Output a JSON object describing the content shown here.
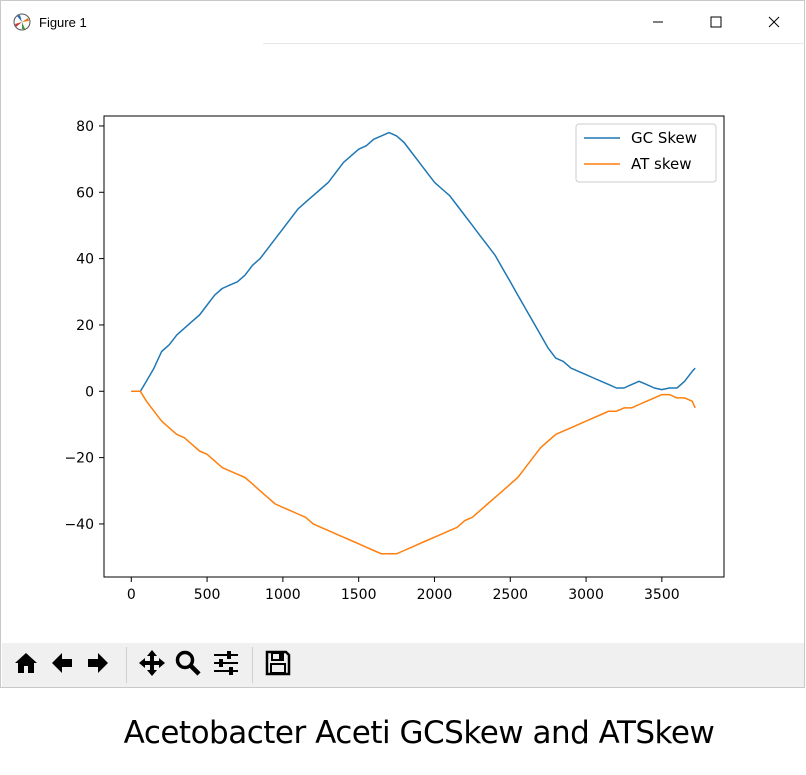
{
  "window": {
    "title": "Figure 1"
  },
  "window_controls": {
    "minimize_icon": "minimize-icon",
    "maximize_icon": "maximize-icon",
    "close_icon": "close-icon"
  },
  "toolbar": {
    "items": [
      "home-icon",
      "back-arrow-icon",
      "forward-arrow-icon",
      "pan-icon",
      "zoom-icon",
      "configure-subplots-icon",
      "save-icon"
    ]
  },
  "caption": "Acetobacter Aceti GCSkew and ATSkew",
  "colors": {
    "gc": "#1f77b4",
    "at": "#ff7f0e"
  },
  "chart_data": {
    "type": "line",
    "title": "",
    "xlabel": "",
    "ylabel": "",
    "xlim": [
      -180,
      3910
    ],
    "ylim": [
      -56,
      83
    ],
    "xticks": [
      0,
      500,
      1000,
      1500,
      2000,
      2500,
      3000,
      3500
    ],
    "yticks": [
      -40,
      -20,
      0,
      20,
      40,
      60,
      80
    ],
    "grid": false,
    "legend_position": "upper right",
    "series": [
      {
        "name": "GC Skew",
        "color": "#1f77b4",
        "x": [
          0,
          60,
          100,
          150,
          200,
          250,
          300,
          350,
          400,
          450,
          500,
          550,
          600,
          650,
          700,
          750,
          800,
          850,
          900,
          950,
          1000,
          1050,
          1100,
          1150,
          1200,
          1250,
          1300,
          1350,
          1400,
          1450,
          1500,
          1550,
          1600,
          1650,
          1700,
          1750,
          1800,
          1850,
          1900,
          1950,
          2000,
          2050,
          2100,
          2150,
          2200,
          2250,
          2300,
          2350,
          2400,
          2450,
          2500,
          2550,
          2600,
          2650,
          2700,
          2750,
          2800,
          2850,
          2900,
          2950,
          3000,
          3050,
          3100,
          3150,
          3200,
          3250,
          3300,
          3350,
          3400,
          3450,
          3500,
          3550,
          3600,
          3650,
          3700,
          3720
        ],
        "y": [
          0,
          0,
          3,
          7,
          12,
          14,
          17,
          19,
          21,
          23,
          26,
          29,
          31,
          32,
          33,
          35,
          38,
          40,
          43,
          46,
          49,
          52,
          55,
          57,
          59,
          61,
          63,
          66,
          69,
          71,
          73,
          74,
          76,
          77,
          78,
          77,
          75,
          72,
          69,
          66,
          63,
          61,
          59,
          56,
          53,
          50,
          47,
          44,
          41,
          37,
          33,
          29,
          25,
          21,
          17,
          13,
          10,
          9,
          7,
          6,
          5,
          4,
          3,
          2,
          1,
          1,
          2,
          3,
          2,
          1,
          0.5,
          1,
          1,
          3,
          6,
          7
        ]
      },
      {
        "name": "AT skew",
        "color": "#ff7f0e",
        "x": [
          0,
          60,
          100,
          150,
          200,
          250,
          300,
          350,
          400,
          450,
          500,
          550,
          600,
          650,
          700,
          750,
          800,
          850,
          900,
          950,
          1000,
          1050,
          1100,
          1150,
          1200,
          1250,
          1300,
          1350,
          1400,
          1450,
          1500,
          1550,
          1600,
          1650,
          1700,
          1750,
          1800,
          1850,
          1900,
          1950,
          2000,
          2050,
          2100,
          2150,
          2200,
          2250,
          2300,
          2350,
          2400,
          2450,
          2500,
          2550,
          2600,
          2650,
          2700,
          2750,
          2800,
          2850,
          2900,
          2950,
          3000,
          3050,
          3100,
          3150,
          3200,
          3250,
          3300,
          3350,
          3400,
          3450,
          3500,
          3550,
          3600,
          3650,
          3700,
          3720
        ],
        "y": [
          0,
          0,
          -3,
          -6,
          -9,
          -11,
          -13,
          -14,
          -16,
          -18,
          -19,
          -21,
          -23,
          -24,
          -25,
          -26,
          -28,
          -30,
          -32,
          -34,
          -35,
          -36,
          -37,
          -38,
          -40,
          -41,
          -42,
          -43,
          -44,
          -45,
          -46,
          -47,
          -48,
          -49,
          -49,
          -49,
          -48,
          -47,
          -46,
          -45,
          -44,
          -43,
          -42,
          -41,
          -39,
          -38,
          -36,
          -34,
          -32,
          -30,
          -28,
          -26,
          -23,
          -20,
          -17,
          -15,
          -13,
          -12,
          -11,
          -10,
          -9,
          -8,
          -7,
          -6,
          -6,
          -5,
          -5,
          -4,
          -3,
          -2,
          -1,
          -1,
          -2,
          -2,
          -3,
          -5
        ]
      }
    ]
  }
}
